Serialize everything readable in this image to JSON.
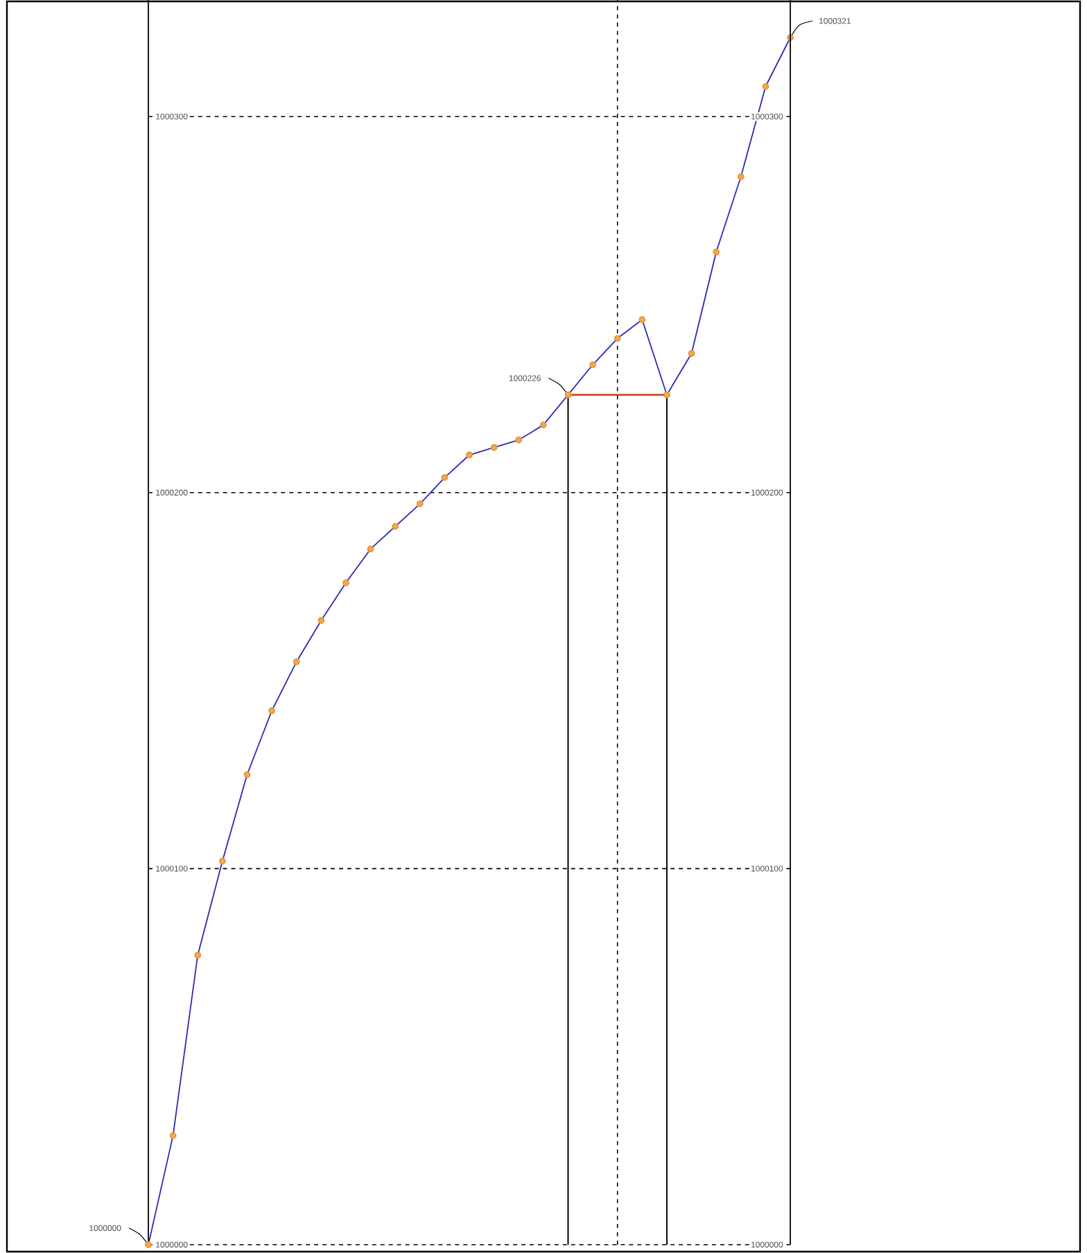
{
  "chart_data": {
    "type": "line",
    "categories": [
      null,
      null,
      null,
      null,
      null,
      null,
      null,
      null,
      null,
      null,
      null,
      null,
      null,
      null,
      null,
      null,
      null,
      null,
      null,
      null,
      null,
      null,
      null,
      null,
      null,
      null,
      null
    ],
    "ylim": [
      1000000,
      1000331
    ],
    "yticks": [
      1000000,
      1000100,
      1000200,
      1000300
    ],
    "y2lim": [
      1000000,
      1000331
    ],
    "y2ticks": [
      1000000,
      1000100,
      1000200,
      1000300
    ],
    "grid": "y",
    "marker": "circle",
    "series": [
      {
        "color": "#2a2ab4",
        "values": [
          1000000,
          1000029,
          1000077,
          1000102,
          1000125,
          1000142,
          1000155,
          1000166,
          1000176,
          1000185,
          1000191,
          1000197,
          1000204,
          1000210,
          1000212,
          1000214,
          1000218,
          1000226,
          1000234,
          1000241,
          1000246,
          1000226,
          1000237,
          1000264,
          1000284,
          1000308,
          1000321
        ]
      }
    ],
    "ref_lines": [
      {
        "axis": "y",
        "value": 1000226,
        "color": "#d03a10"
      }
    ],
    "annotations": [
      "1000000",
      "1000226",
      "1000321"
    ]
  }
}
